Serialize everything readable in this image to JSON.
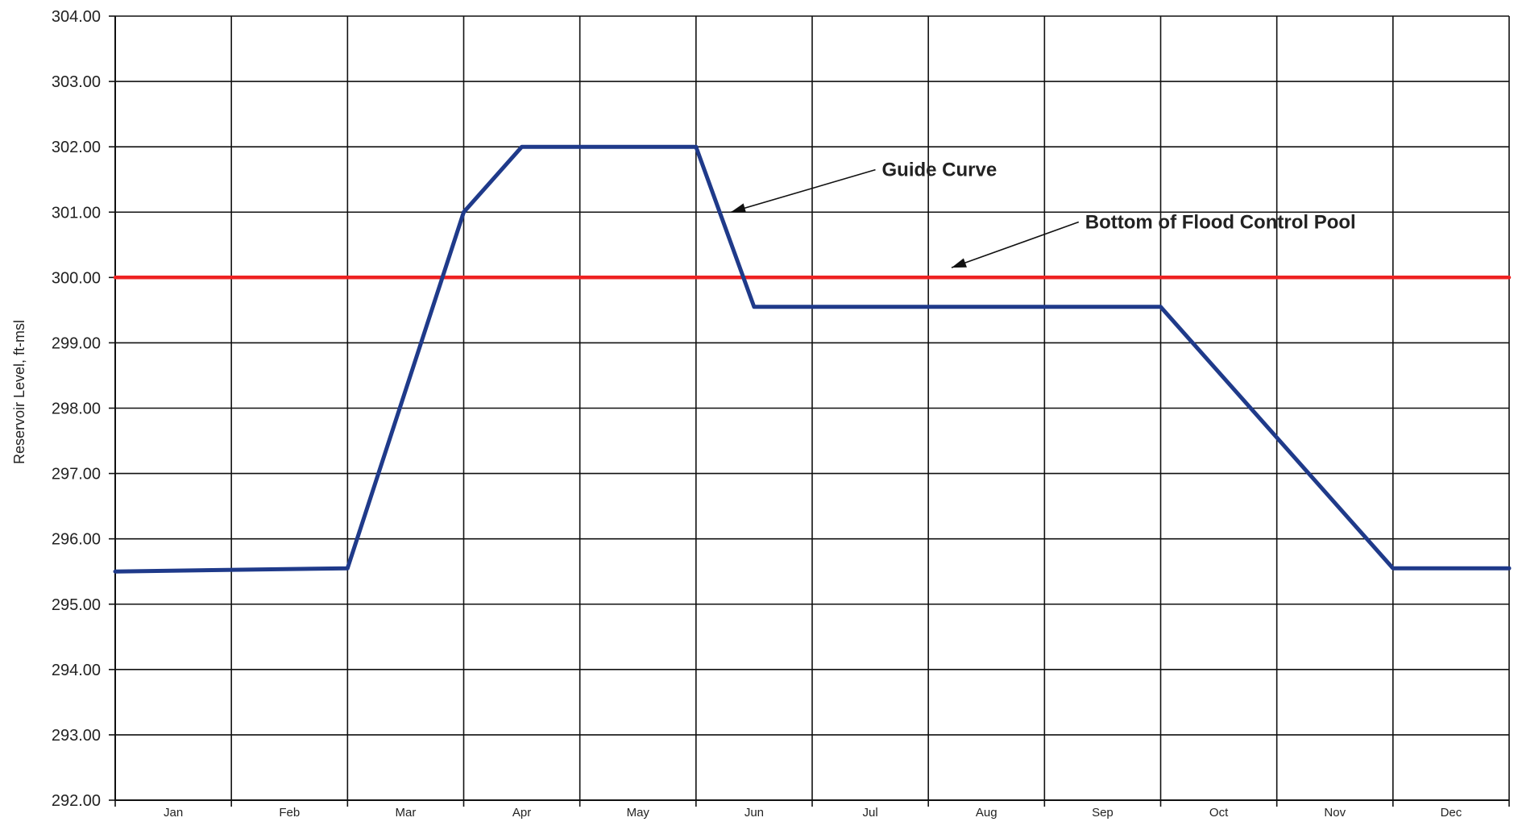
{
  "chart_data": {
    "type": "line",
    "title": "",
    "xlabel": "",
    "ylabel": "Reservoir Level, ft-msl",
    "ylim": [
      292,
      304
    ],
    "y_ticks": [
      "292.00",
      "293.00",
      "294.00",
      "295.00",
      "296.00",
      "297.00",
      "298.00",
      "299.00",
      "300.00",
      "301.00",
      "302.00",
      "303.00",
      "304.00"
    ],
    "x_ticks": [
      "Jan",
      "Feb",
      "Mar",
      "Apr",
      "May",
      "Jun",
      "Jul",
      "Aug",
      "Sep",
      "Oct",
      "Nov",
      "Dec"
    ],
    "xlim": [
      0,
      12
    ],
    "grid": true,
    "legend": "none",
    "series": [
      {
        "name": "Guide Curve",
        "color": "#1f3a8a",
        "x": [
          0,
          2,
          3,
          3.5,
          5,
          5.5,
          9,
          11,
          12
        ],
        "y": [
          295.5,
          295.55,
          301.0,
          302.0,
          302.0,
          299.55,
          299.55,
          295.55,
          295.55
        ]
      },
      {
        "name": "Bottom of Flood Control Pool",
        "color": "#ee2222",
        "x": [
          0,
          12
        ],
        "y": [
          300.0,
          300.0
        ]
      }
    ],
    "annotations": [
      {
        "text": "Guide Curve",
        "target_series": 0,
        "target_x": 5.3,
        "target_y": 301.0,
        "label_x": 6.6,
        "label_y": 301.55
      },
      {
        "text": "Bottom of Flood Control Pool",
        "target_series": 1,
        "target_x": 7.2,
        "target_y": 300.15,
        "label_x": 8.35,
        "label_y": 300.75
      }
    ],
    "colors": {
      "grid": "#111111",
      "axis": "#111111",
      "text": "#222222"
    }
  }
}
